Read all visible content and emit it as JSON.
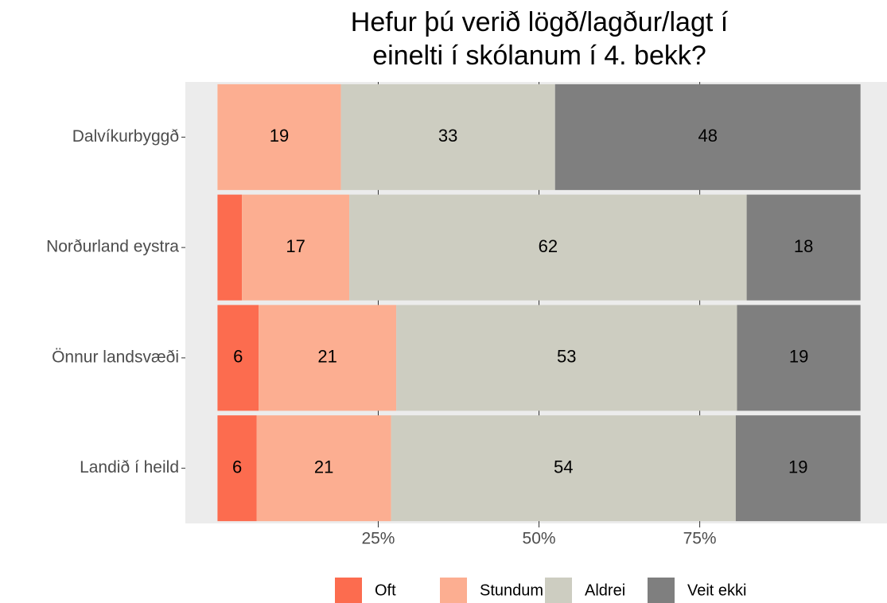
{
  "chart_data": {
    "type": "stacked-barh",
    "title": [
      "Hefur þú verið lögð/lagður/lagt í",
      "einelti í skólanum í 4. bekk?"
    ],
    "categories": [
      "Dalvíkurbyggð",
      "Norðurland eystra",
      "Önnur landsvæði",
      "Landið í heild"
    ],
    "series": [
      {
        "name": "Oft",
        "color": "#fc6c4f",
        "values": [
          0,
          3.8,
          6.4,
          6.1
        ],
        "value_labels": [
          null,
          null,
          "6",
          "6"
        ]
      },
      {
        "name": "Stundum",
        "color": "#fcae91",
        "values": [
          19.2,
          16.7,
          21.4,
          20.9
        ],
        "value_labels": [
          "19",
          "17",
          "21",
          "21"
        ]
      },
      {
        "name": "Aldrei",
        "color": "#cdcdc1",
        "values": [
          33.3,
          61.8,
          53,
          53.6
        ],
        "value_labels": [
          "33",
          "62",
          "53",
          "54"
        ]
      },
      {
        "name": "Veit ekki",
        "color": "#7f7f7f",
        "values": [
          47.5,
          17.7,
          19.2,
          19.4
        ],
        "value_labels": [
          "48",
          "18",
          "19",
          "19"
        ]
      }
    ],
    "xlim": [
      -5,
      104
    ],
    "xticks": [
      {
        "value": 25,
        "label": "25%"
      },
      {
        "value": 50,
        "label": "50%"
      },
      {
        "value": 75,
        "label": "75%"
      }
    ],
    "grid": true,
    "legend": "bottom"
  }
}
